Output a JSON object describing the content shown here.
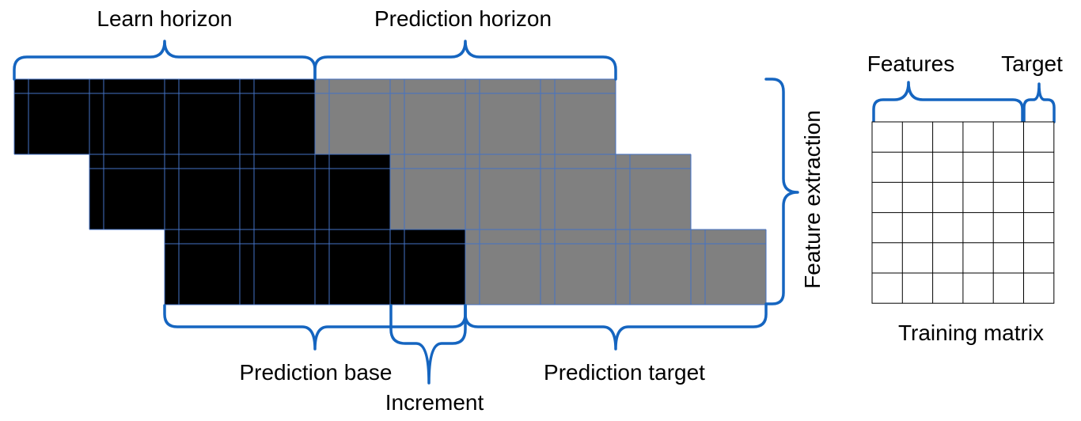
{
  "labels": {
    "learn_horizon": "Learn horizon",
    "prediction_horizon": "Prediction horizon",
    "feature_extraction": "Feature extraction",
    "prediction_base": "Prediction base",
    "increment": "Increment",
    "prediction_target": "Prediction target",
    "features": "Features",
    "target": "Target",
    "training_matrix": "Training matrix"
  },
  "colors": {
    "learn": "#000000",
    "predict": "#808080",
    "grid_line": "#4472c4",
    "brace": "#1565c0",
    "matrix_line": "#000000"
  },
  "windows": [
    {
      "name": "window-1"
    },
    {
      "name": "window-2"
    },
    {
      "name": "window-3"
    }
  ],
  "training_matrix": {
    "rows": 6,
    "feature_columns": 5,
    "target_columns": 1
  }
}
